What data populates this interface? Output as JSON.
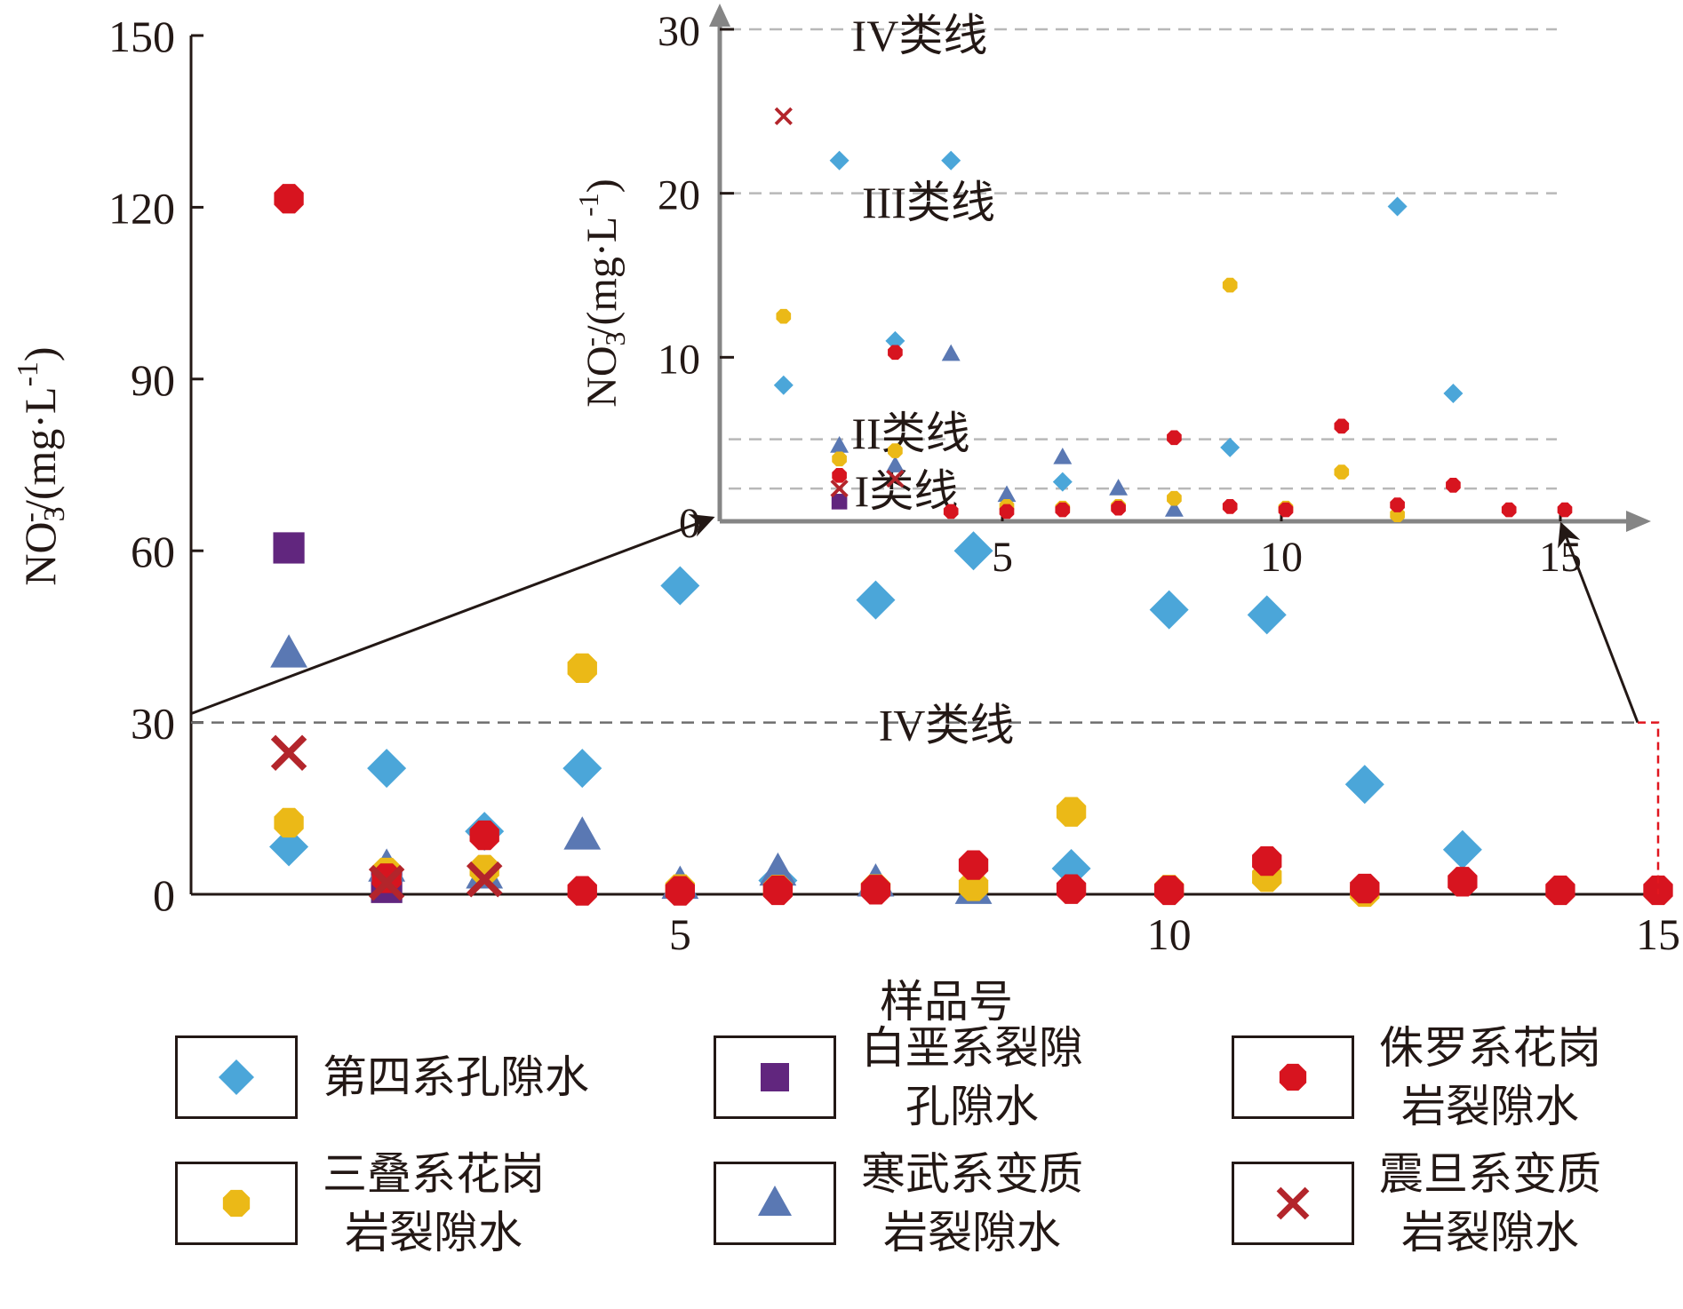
{
  "chart_data": {
    "type": "scatter",
    "xlabel": "样品号",
    "ylabel": "NO3-/(mg·L-1)",
    "ylabel_parts": {
      "base": "NO",
      "sub": "3",
      "sup": "-",
      "rest": "/(mg·L",
      "unit_sup": "-1",
      "close": ")"
    },
    "main": {
      "xlim": [
        0,
        15
      ],
      "ylim": [
        0,
        150
      ],
      "xticks": [
        5,
        10,
        15
      ],
      "xtick_labels": [
        "5",
        "10",
        "15"
      ],
      "yticks": [
        0,
        30,
        60,
        90,
        120,
        150
      ],
      "ytick_labels": [
        "0",
        "30",
        "60",
        "90",
        "120",
        "150"
      ],
      "reference_lines": [
        {
          "y": 30,
          "label": "IV类线"
        }
      ]
    },
    "inset": {
      "xlim": [
        0,
        15
      ],
      "ylim": [
        0,
        30
      ],
      "xticks": [
        5,
        10,
        15
      ],
      "xtick_labels": [
        "5",
        "10",
        "15"
      ],
      "yticks": [
        0,
        10,
        20,
        30
      ],
      "ytick_labels": [
        "0",
        "10",
        "20",
        "30"
      ],
      "reference_lines": [
        {
          "y": 30,
          "label": "IV类线"
        },
        {
          "y": 20,
          "label": "III类线"
        },
        {
          "y": 5,
          "label": "II类线"
        },
        {
          "y": 2,
          "label": "I类线"
        }
      ]
    },
    "series": [
      {
        "name": "第四系孔隙水",
        "name_lines": [
          "第四系孔隙水"
        ],
        "marker": "diamond",
        "color": "#4ba6d9",
        "points": [
          [
            1,
            8.3
          ],
          [
            2,
            22
          ],
          [
            3,
            11
          ],
          [
            4,
            22
          ],
          [
            5,
            53.9
          ],
          [
            6,
            2.4
          ],
          [
            7,
            51.4
          ],
          [
            8,
            60
          ],
          [
            9,
            4.5
          ],
          [
            10,
            49.7
          ],
          [
            11,
            48.8
          ],
          [
            12,
            19.2
          ],
          [
            13,
            7.8
          ]
        ]
      },
      {
        "name": "白垩系裂隙孔隙水",
        "name_lines": [
          "白垩系裂隙",
          "孔隙水"
        ],
        "marker": "square",
        "color": "#61267e",
        "points": [
          [
            1,
            60.5
          ],
          [
            2,
            1.2
          ]
        ]
      },
      {
        "name": "侏罗系花岗岩裂隙水",
        "name_lines": [
          "侏罗系花岗",
          "岩裂隙水"
        ],
        "marker": "circle",
        "color": "#d7141f",
        "points": [
          [
            1,
            121.5
          ],
          [
            2,
            2.8
          ],
          [
            3,
            10.3
          ],
          [
            4,
            0.6
          ],
          [
            5,
            0.6
          ],
          [
            6,
            0.7
          ],
          [
            7,
            0.8
          ],
          [
            8,
            5.1
          ],
          [
            9,
            0.9
          ],
          [
            10,
            0.7
          ],
          [
            11,
            5.8
          ],
          [
            12,
            1.0
          ],
          [
            13,
            2.2
          ],
          [
            14,
            0.7
          ],
          [
            15,
            0.7
          ]
        ]
      },
      {
        "name": "三叠系花岗岩裂隙水",
        "name_lines": [
          "三叠系花岗",
          "岩裂隙水"
        ],
        "marker": "circle",
        "color": "#ebb917",
        "points": [
          [
            1,
            12.5
          ],
          [
            2,
            3.8
          ],
          [
            3,
            4.3
          ],
          [
            4,
            39.5
          ],
          [
            5,
            0.9
          ],
          [
            6,
            0.8
          ],
          [
            7,
            0.9
          ],
          [
            8,
            1.4
          ],
          [
            9,
            14.4
          ],
          [
            10,
            0.8
          ],
          [
            11,
            3.0
          ],
          [
            12,
            0.4
          ]
        ]
      },
      {
        "name": "寒武系变质岩裂隙水",
        "name_lines": [
          "寒武系变质",
          "岩裂隙水"
        ],
        "marker": "triangle",
        "color": "#5a78b3",
        "points": [
          [
            1,
            42
          ],
          [
            2,
            4.6
          ],
          [
            3,
            3.4
          ],
          [
            4,
            10.2
          ],
          [
            5,
            1.6
          ],
          [
            6,
            3.9
          ],
          [
            7,
            2.0
          ],
          [
            8,
            0.7
          ]
        ]
      },
      {
        "name": "震旦系变质岩裂隙水",
        "name_lines": [
          "震旦系变质",
          "岩裂隙水"
        ],
        "marker": "cross",
        "color": "#b3252b",
        "points": [
          [
            1,
            24.7
          ],
          [
            2,
            2.0
          ],
          [
            3,
            2.6
          ]
        ]
      }
    ],
    "legend_position": "bottom",
    "legend_order": [
      0,
      1,
      2,
      3,
      4,
      5
    ],
    "grid": false
  }
}
